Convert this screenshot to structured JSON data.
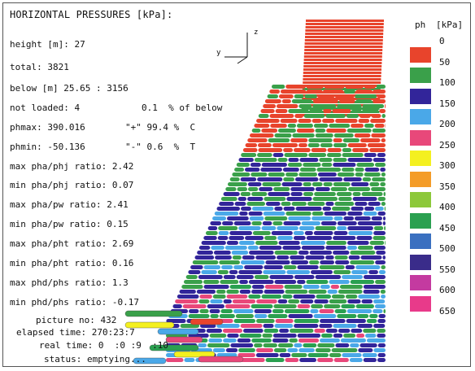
{
  "title": "HORIZONTAL PRESSURES [kPa]:",
  "stats": {
    "height": "height [m]: 27",
    "total": "total: 3821",
    "below": "below [m] 25.65 : 3156",
    "not_loaded": "not loaded: 4",
    "not_loaded_pct": "0.1  % of below",
    "phmax": "phmax: 390.016",
    "phmax_pct": "\"+\" 99.4 %  C",
    "phmin": "phmin: -50.136",
    "phmin_pct": "\"-\" 0.6  %  T",
    "ratios": [
      "max pha/phj ratio: 2.42",
      "min pha/phj ratio: 0.07",
      "max pha/pw ratio: 2.41",
      "min pha/pw ratio: 0.15",
      "max pha/pht ratio: 2.69",
      "min pha/pht ratio: 0.16",
      "max phd/phs ratio: 1.3",
      "min phd/phs ratio: -0.17"
    ],
    "picture_no": "picture no: 432",
    "elapsed_time": "elapsed time: 270:23:7",
    "real_time": "real time: 0  :0 :9  :10",
    "status": "status: emptying..."
  },
  "axes": {
    "z": "z",
    "y": "y"
  },
  "legend": {
    "header_ph": "ph",
    "header_unit": "[kPa]",
    "labels": [
      "0",
      "50",
      "100",
      "150",
      "200",
      "250",
      "300",
      "350",
      "400",
      "450",
      "500",
      "550",
      "600",
      "650"
    ],
    "colors": [
      "#e8442c",
      "#3aa04a",
      "#32259a",
      "#4aa8e8",
      "#e8487a",
      "#f4f020",
      "#f49c28",
      "#8cc83a",
      "#2aa050",
      "#3a70c0",
      "#3a2c8a",
      "#c43aa0",
      "#e83a8a",
      "#c8c8c8"
    ]
  }
}
